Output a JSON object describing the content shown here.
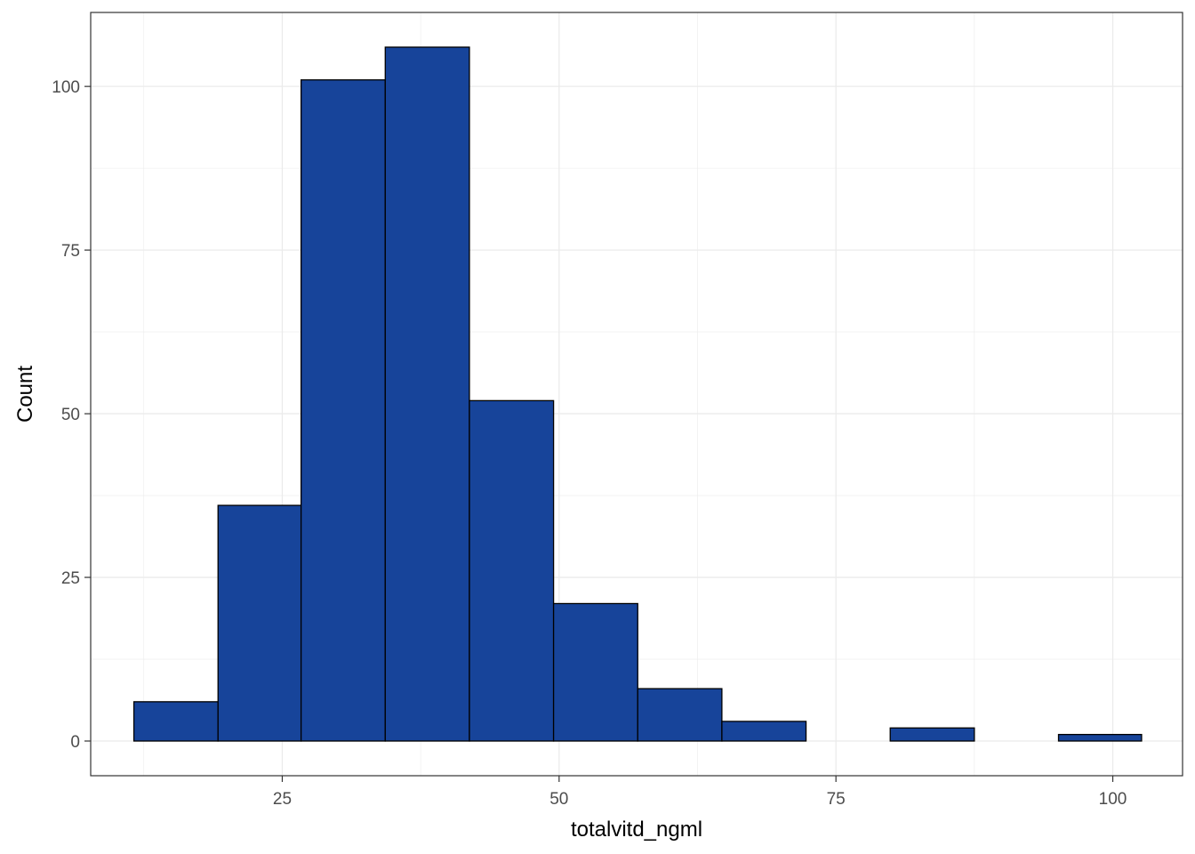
{
  "chart_data": {
    "type": "bar",
    "subtype": "histogram",
    "xlabel": "totalvitd_ngml",
    "ylabel": "Count",
    "xlim": [
      7.7,
      106.3
    ],
    "ylim": [
      -5.3,
      111.3
    ],
    "x_ticks": [
      25,
      50,
      75,
      100
    ],
    "x_ticks_labels": [
      "25",
      "50",
      "75",
      "100"
    ],
    "y_ticks": [
      0,
      25,
      50,
      75,
      100
    ],
    "y_ticks_labels": [
      "0",
      "25",
      "50",
      "75",
      "100"
    ],
    "x_minor_ticks": [
      12.5,
      37.5,
      62.5,
      87.5
    ],
    "y_minor_ticks": [
      12.5,
      37.5,
      62.5,
      87.5,
      112.5
    ],
    "grid": true,
    "bar_fill": "#17449a",
    "bar_stroke": "#000000",
    "panel_border": "#333333",
    "grid_color": "#ebebeb",
    "bins": [
      {
        "x0": 11.6,
        "x1": 19.2,
        "count": 6
      },
      {
        "x0": 19.2,
        "x1": 26.7,
        "count": 36
      },
      {
        "x0": 26.7,
        "x1": 34.3,
        "count": 101
      },
      {
        "x0": 34.3,
        "x1": 41.9,
        "count": 106
      },
      {
        "x0": 41.9,
        "x1": 49.5,
        "count": 52
      },
      {
        "x0": 49.5,
        "x1": 57.1,
        "count": 21
      },
      {
        "x0": 57.1,
        "x1": 64.7,
        "count": 8
      },
      {
        "x0": 64.7,
        "x1": 72.3,
        "count": 3
      },
      {
        "x0": 72.3,
        "x1": 79.9,
        "count": 0
      },
      {
        "x0": 79.9,
        "x1": 87.5,
        "count": 2
      },
      {
        "x0": 87.5,
        "x1": 95.1,
        "count": 0
      },
      {
        "x0": 95.1,
        "x1": 102.6,
        "count": 1
      }
    ]
  }
}
